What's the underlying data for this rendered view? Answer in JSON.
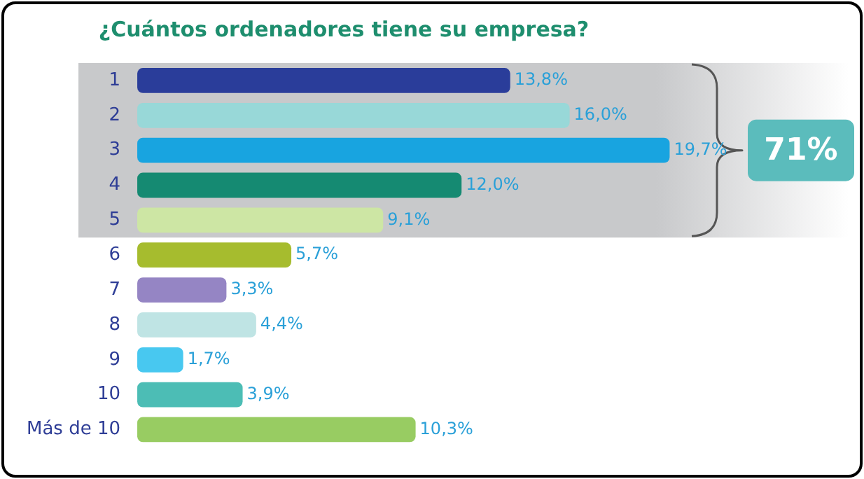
{
  "chart_data": {
    "type": "bar",
    "orientation": "horizontal",
    "title": "¿Cuántos ordenadores tiene su empresa?",
    "categories": [
      "1",
      "2",
      "3",
      "4",
      "5",
      "6",
      "7",
      "8",
      "9",
      "10",
      "Más de 10"
    ],
    "values": [
      13.8,
      16.0,
      19.7,
      12.0,
      9.1,
      5.7,
      3.3,
      4.4,
      1.7,
      3.9,
      10.3
    ],
    "value_labels": [
      "13,8%",
      "16,0%",
      "19,7%",
      "12,0%",
      "9,1%",
      "5,7%",
      "3,3%",
      "4,4%",
      "1,7%",
      "3,9%",
      "10,3%"
    ],
    "colors": [
      "#2a3d9a",
      "#98d8d8",
      "#18a4e0",
      "#158a72",
      "#cde6a4",
      "#a6bc2e",
      "#9585c4",
      "#bfe4e4",
      "#48c8f0",
      "#4cbdb5",
      "#98cc62"
    ],
    "bands": [
      {
        "axis": "y",
        "from": "1",
        "to": "5",
        "label": "71%",
        "color": "#c8c9cb"
      }
    ],
    "grid": false,
    "legend": false
  }
}
